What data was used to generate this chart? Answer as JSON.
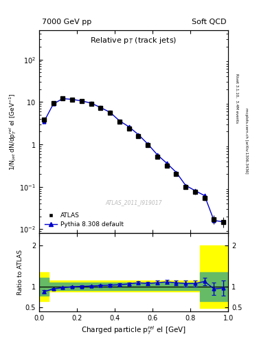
{
  "title_left": "7000 GeV pp",
  "title_right": "Soft QCD",
  "right_label_top": "Rivet 3.1.10,  3.4M events",
  "right_label_bot": "mcplots.cern.ch [arXiv:1306.3436]",
  "plot_title": "Relative p$_{T}$ (track jets)",
  "xlabel": "Charged particle p$_{T}^{rel}$ el [GeV]",
  "ylabel_main": "1/N$_{jet}$ dN/dp$_{T}^{rel}$ el [GeV$^{-1}$]",
  "ylabel_ratio": "Ratio to ATLAS",
  "watermark": "ATLAS_2011_I919017",
  "xlim": [
    0.0,
    1.0
  ],
  "ylim_main": [
    0.008,
    500
  ],
  "ylim_ratio": [
    0.4,
    2.3
  ],
  "data_x": [
    0.025,
    0.075,
    0.125,
    0.175,
    0.225,
    0.275,
    0.325,
    0.375,
    0.425,
    0.475,
    0.525,
    0.575,
    0.625,
    0.675,
    0.725,
    0.775,
    0.825,
    0.875,
    0.925,
    0.975
  ],
  "data_y": [
    3.8,
    9.5,
    12.2,
    11.5,
    10.5,
    9.2,
    7.2,
    5.5,
    3.4,
    2.4,
    1.55,
    0.95,
    0.52,
    0.32,
    0.2,
    0.1,
    0.075,
    0.055,
    0.017,
    0.015
  ],
  "data_yerr": [
    0.25,
    0.35,
    0.35,
    0.35,
    0.35,
    0.3,
    0.25,
    0.2,
    0.15,
    0.12,
    0.08,
    0.06,
    0.04,
    0.03,
    0.02,
    0.012,
    0.01,
    0.008,
    0.004,
    0.004
  ],
  "mc_x": [
    0.025,
    0.075,
    0.125,
    0.175,
    0.225,
    0.275,
    0.325,
    0.375,
    0.425,
    0.475,
    0.525,
    0.575,
    0.625,
    0.675,
    0.725,
    0.775,
    0.825,
    0.875,
    0.925,
    0.975
  ],
  "mc_y": [
    3.4,
    9.0,
    12.0,
    11.5,
    10.6,
    9.4,
    7.4,
    5.7,
    3.6,
    2.6,
    1.7,
    1.02,
    0.57,
    0.36,
    0.22,
    0.108,
    0.081,
    0.062,
    0.016,
    0.015
  ],
  "ratio_y": [
    0.88,
    0.95,
    0.98,
    1.0,
    1.01,
    1.02,
    1.03,
    1.04,
    1.05,
    1.07,
    1.1,
    1.08,
    1.1,
    1.12,
    1.1,
    1.08,
    1.08,
    1.13,
    0.95,
    0.97
  ],
  "ratio_yerr": [
    0.04,
    0.025,
    0.02,
    0.02,
    0.02,
    0.02,
    0.02,
    0.025,
    0.03,
    0.035,
    0.04,
    0.045,
    0.05,
    0.055,
    0.06,
    0.07,
    0.08,
    0.09,
    0.15,
    0.18
  ],
  "data_color": "#000000",
  "mc_color": "#0000cc",
  "legend_label_data": "ATLAS",
  "legend_label_mc": "Pythia 8.308 default",
  "yticks_main": [
    0.01,
    0.1,
    1,
    10,
    100
  ],
  "ytick_ratio_left": [
    0.5,
    1.0,
    2.0
  ],
  "ytick_ratio_right": [
    0.5,
    1.0,
    2.0
  ]
}
